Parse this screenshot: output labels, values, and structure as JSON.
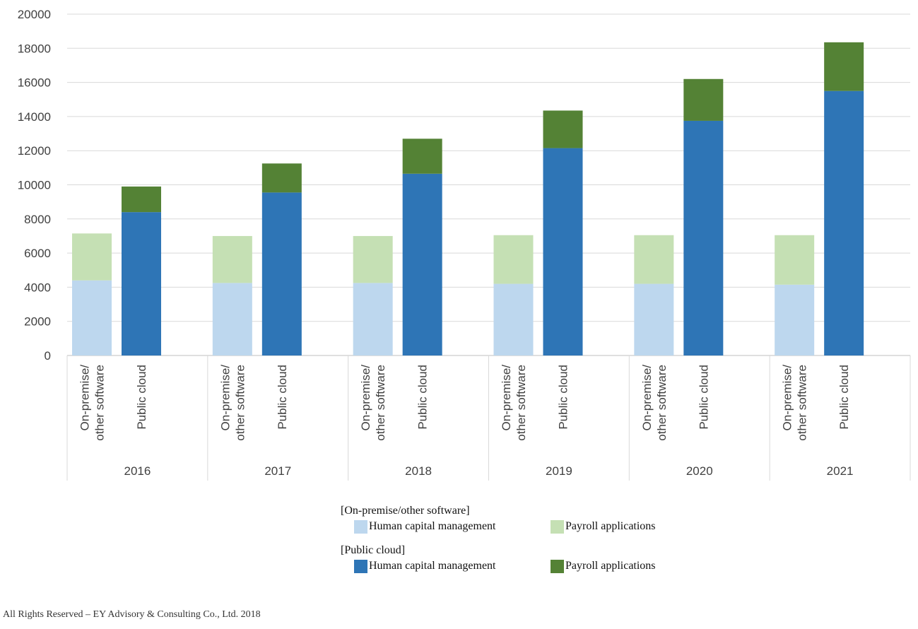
{
  "chart_data": {
    "type": "bar",
    "stacked": true,
    "title": "",
    "xlabel": "",
    "ylabel": "",
    "ylim": [
      0,
      20000
    ],
    "yticks": [
      0,
      2000,
      4000,
      6000,
      8000,
      10000,
      12000,
      14000,
      16000,
      18000,
      20000
    ],
    "years": [
      "2016",
      "2017",
      "2018",
      "2019",
      "2020",
      "2021"
    ],
    "subcategories": [
      "On-premise/\nother software",
      "Public cloud"
    ],
    "series": [
      {
        "group": "On-premise/other software",
        "name": "Human capital management",
        "color": "#bdd7ee",
        "values": [
          4400,
          4250,
          4250,
          4200,
          4200,
          4150
        ]
      },
      {
        "group": "On-premise/other software",
        "name": "Payroll applications",
        "color": "#c5e0b4",
        "values": [
          2750,
          2750,
          2750,
          2850,
          2850,
          2900
        ]
      },
      {
        "group": "Public cloud",
        "name": "Human capital management",
        "color": "#2e75b6",
        "values": [
          8400,
          9550,
          10650,
          12150,
          13750,
          15500
        ]
      },
      {
        "group": "Public cloud",
        "name": "Payroll applications",
        "color": "#548235",
        "values": [
          1500,
          1700,
          2050,
          2200,
          2450,
          2850
        ]
      }
    ]
  },
  "legend": {
    "onprem_title": "[On-premise/other software]",
    "cloud_title": "[Public cloud]",
    "hcm_label": "Human capital management",
    "payroll_label": "Payroll applications"
  },
  "footer": "All Rights Reserved – EY Advisory & Consulting Co., Ltd.   2018"
}
